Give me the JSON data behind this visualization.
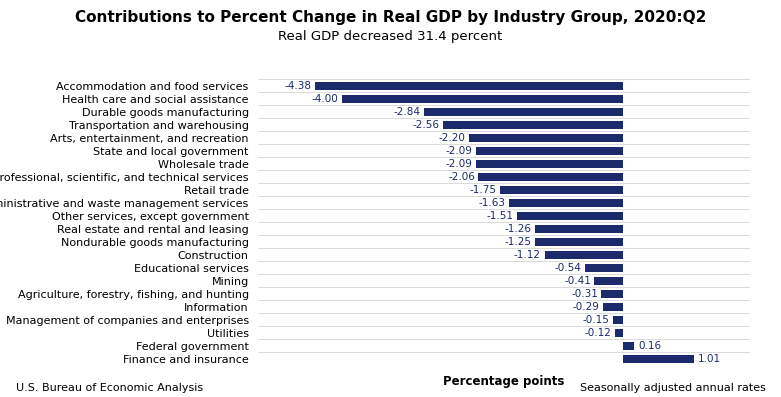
{
  "title": "Contributions to Percent Change in Real GDP by Industry Group, 2020:Q2",
  "subtitle": "Real GDP decreased 31.4 percent",
  "categories": [
    "Finance and insurance",
    "Federal government",
    "Utilities",
    "Management of companies and enterprises",
    "Information",
    "Agriculture, forestry, fishing, and hunting",
    "Mining",
    "Educational services",
    "Construction",
    "Nondurable goods manufacturing",
    "Real estate and rental and leasing",
    "Other services, except government",
    "Administrative and waste management services",
    "Retail trade",
    "Professional, scientific, and technical services",
    "Wholesale trade",
    "State and local government",
    "Arts, entertainment, and recreation",
    "Transportation and warehousing",
    "Durable goods manufacturing",
    "Health care and social assistance",
    "Accommodation and food services"
  ],
  "values": [
    1.01,
    0.16,
    -0.12,
    -0.15,
    -0.29,
    -0.31,
    -0.41,
    -0.54,
    -1.12,
    -1.25,
    -1.26,
    -1.51,
    -1.63,
    -1.75,
    -2.06,
    -2.09,
    -2.09,
    -2.2,
    -2.56,
    -2.84,
    -4.0,
    -4.38
  ],
  "bar_color": "#1b2a6b",
  "label_color": "#1b2a6b",
  "xlabel": "Percentage points",
  "footer_left": "U.S. Bureau of Economic Analysis",
  "footer_right": "Seasonally adjusted annual rates",
  "background_color": "#ffffff",
  "title_fontsize": 11,
  "subtitle_fontsize": 9.5,
  "tick_fontsize": 8,
  "label_fontsize": 7.5,
  "footer_fontsize": 8,
  "xlim": [
    -5.2,
    1.8
  ]
}
